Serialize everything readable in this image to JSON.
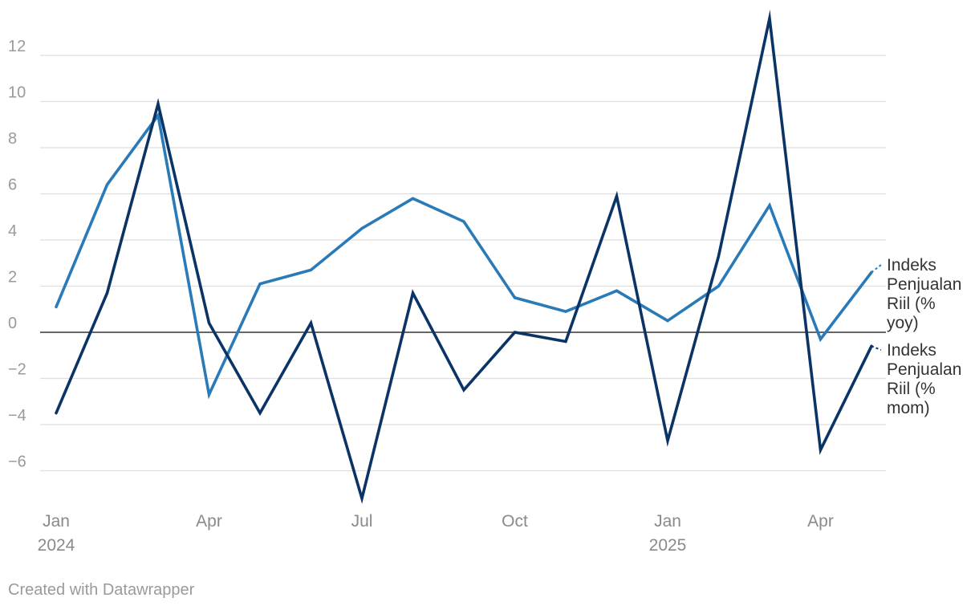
{
  "chart_data": {
    "type": "line",
    "title": "",
    "xlabel": "",
    "ylabel": "",
    "x": [
      "2024-01",
      "2024-02",
      "2024-03",
      "2024-04",
      "2024-05",
      "2024-06",
      "2024-07",
      "2024-08",
      "2024-09",
      "2024-10",
      "2024-11",
      "2024-12",
      "2025-01",
      "2025-02",
      "2025-03",
      "2025-04",
      "2025-05"
    ],
    "x_ticks": [
      {
        "x": "2024-01",
        "label": "Jan",
        "sublabel": "2024"
      },
      {
        "x": "2024-04",
        "label": "Apr",
        "sublabel": ""
      },
      {
        "x": "2024-07",
        "label": "Jul",
        "sublabel": ""
      },
      {
        "x": "2024-10",
        "label": "Oct",
        "sublabel": ""
      },
      {
        "x": "2025-01",
        "label": "Jan",
        "sublabel": "2025"
      },
      {
        "x": "2025-04",
        "label": "Apr",
        "sublabel": ""
      }
    ],
    "y_ticks": [
      12,
      10,
      8,
      6,
      4,
      2,
      0,
      -2,
      -4,
      -6
    ],
    "y_tick_labels": [
      "12",
      "10",
      "8",
      "6",
      "4",
      "2",
      "0",
      "−2",
      "−4",
      "−6"
    ],
    "ylim": [
      -7.5,
      13.7
    ],
    "grid": true,
    "legend": "direct labels at right end of lines",
    "series": [
      {
        "name": "Indeks Penjualan Riil (% yoy)",
        "label_lines": [
          "Indeks",
          "Penjualan",
          "Riil (%",
          "yoy)"
        ],
        "color": "#2a7ab8",
        "values": [
          1.1,
          6.4,
          9.4,
          -2.7,
          2.1,
          2.7,
          4.5,
          5.8,
          4.8,
          1.5,
          0.9,
          1.8,
          0.5,
          2.0,
          5.5,
          -0.3,
          2.6
        ]
      },
      {
        "name": "Indeks Penjualan Riil (% mom)",
        "label_lines": [
          "Indeks",
          "Penjualan",
          "Riil (%",
          "mom)"
        ],
        "color": "#0b3466",
        "values": [
          -3.5,
          1.7,
          9.9,
          0.4,
          -3.5,
          0.4,
          -7.2,
          1.7,
          -2.5,
          0.0,
          -0.4,
          5.9,
          -4.7,
          3.3,
          13.6,
          -5.1,
          -0.6
        ]
      }
    ]
  },
  "footer": {
    "credit": "Created with Datawrapper"
  }
}
